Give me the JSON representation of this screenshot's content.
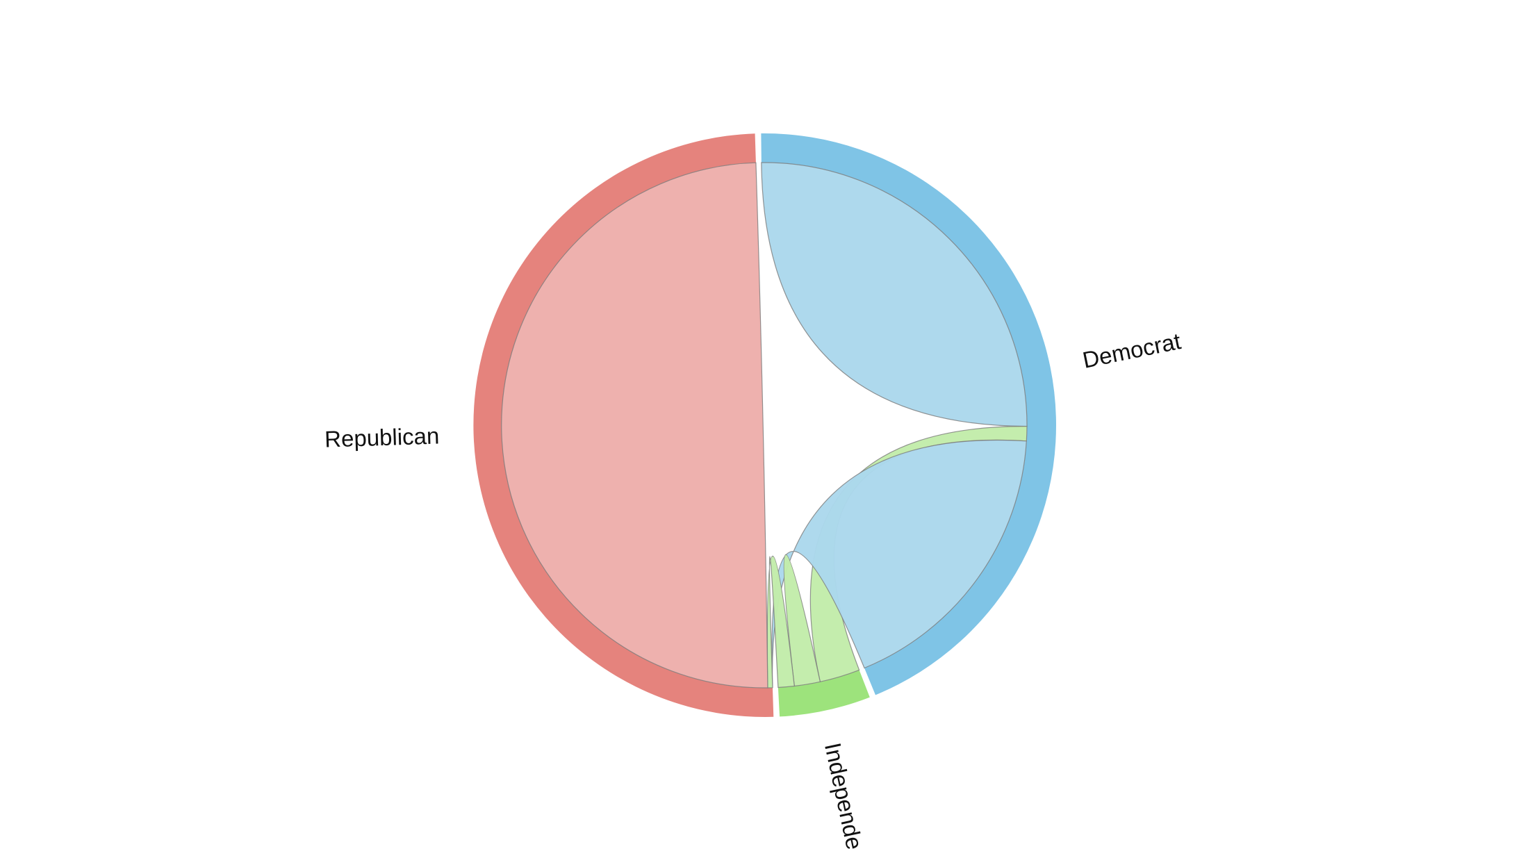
{
  "chart_data": {
    "type": "chord",
    "title": "",
    "groups": [
      {
        "name": "Democrat",
        "color": "#7fc4e6",
        "ribbon_color": "#abd8ec"
      },
      {
        "name": "Independent",
        "color": "#9de37c",
        "ribbon_color": "#c2ecaa"
      },
      {
        "name": "Republican",
        "color": "#e5837d",
        "ribbon_color": "#edaeab"
      }
    ],
    "matrix": [
      [
        25.5,
        0.9,
        18.0
      ],
      [
        2.5,
        1.6,
        1.0
      ],
      [
        0.0,
        0.3,
        50.2
      ]
    ]
  }
}
